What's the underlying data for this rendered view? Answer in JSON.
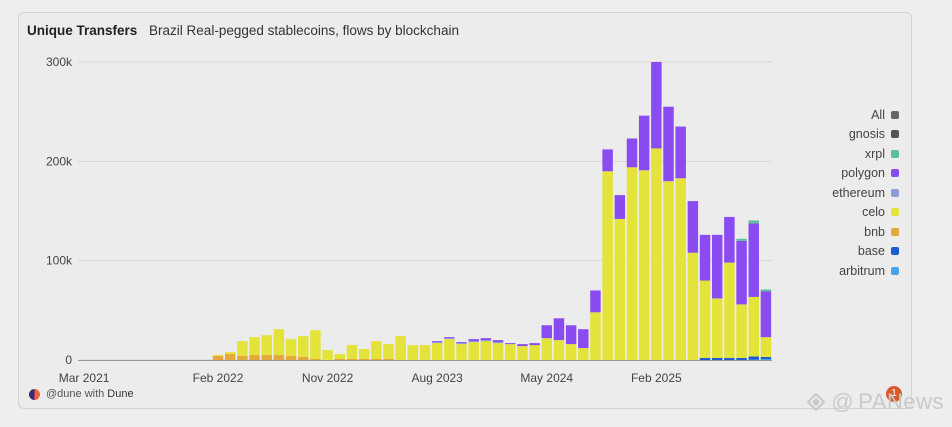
{
  "chart_data": {
    "type": "bar",
    "stacked": true,
    "title": "Unique Transfers",
    "subtitle": "Brazil Real-pegged stablecoins, flows by blockchain",
    "ylim": [
      0,
      300000
    ],
    "y_ticks": [
      "0",
      "100k",
      "200k",
      "300k"
    ],
    "x_ticks": [
      "Mar 2021",
      "Feb 2022",
      "Nov 2022",
      "Aug 2023",
      "May 2024",
      "Feb 2025"
    ],
    "grid": true,
    "legend_position": "right",
    "categories": [
      "2021-03",
      "2021-04",
      "2021-05",
      "2021-06",
      "2021-07",
      "2021-08",
      "2021-09",
      "2021-10",
      "2021-11",
      "2021-12",
      "2022-01",
      "2022-02",
      "2022-03",
      "2022-04",
      "2022-05",
      "2022-06",
      "2022-07",
      "2022-08",
      "2022-09",
      "2022-10",
      "2022-11",
      "2022-12",
      "2023-01",
      "2023-02",
      "2023-03",
      "2023-04",
      "2023-05",
      "2023-06",
      "2023-07",
      "2023-08",
      "2023-09",
      "2023-10",
      "2023-11",
      "2023-12",
      "2024-01",
      "2024-02",
      "2024-03",
      "2024-04",
      "2024-05",
      "2024-06",
      "2024-07",
      "2024-08",
      "2024-09",
      "2024-10",
      "2024-11",
      "2024-12",
      "2025-01",
      "2025-02",
      "2025-03",
      "2025-04",
      "2025-05",
      "2025-06",
      "2025-07",
      "2025-08",
      "2025-09",
      "2025-10",
      "2025-11"
    ],
    "series": [
      {
        "name": "arbitrum",
        "color": "#4aa3e8",
        "values": [
          0,
          0,
          0,
          0,
          0,
          0,
          0,
          0,
          0,
          0,
          0,
          0,
          0,
          0,
          0,
          0,
          0,
          0,
          0,
          0,
          0,
          0,
          0,
          0,
          0,
          0,
          0,
          0,
          0,
          0,
          0,
          0,
          0,
          0,
          0,
          0,
          0,
          0,
          0,
          0,
          0,
          0,
          0,
          0,
          0,
          0,
          0,
          0,
          0,
          0,
          0,
          0,
          0,
          0,
          0,
          500,
          1000
        ]
      },
      {
        "name": "base",
        "color": "#1f5ad1",
        "values": [
          0,
          0,
          0,
          0,
          0,
          0,
          0,
          0,
          0,
          0,
          0,
          0,
          0,
          0,
          0,
          0,
          0,
          0,
          0,
          0,
          0,
          0,
          0,
          0,
          0,
          0,
          0,
          0,
          0,
          0,
          0,
          0,
          0,
          0,
          0,
          0,
          0,
          0,
          0,
          0,
          0,
          0,
          0,
          0,
          0,
          0,
          0,
          0,
          0,
          0,
          0,
          2000,
          2000,
          2000,
          2000,
          3000,
          2000
        ]
      },
      {
        "name": "bnb",
        "color": "#e5a83a",
        "values": [
          0,
          0,
          0,
          0,
          0,
          0,
          0,
          0,
          0,
          0,
          0,
          4000,
          6000,
          4000,
          5000,
          5000,
          5000,
          4000,
          3000,
          1000,
          0,
          1000,
          1000,
          1000,
          1000,
          1000,
          0,
          0,
          0,
          0,
          0,
          0,
          0,
          0,
          0,
          0,
          0,
          0,
          0,
          0,
          0,
          0,
          0,
          0,
          0,
          0,
          0,
          0,
          0,
          0,
          0,
          0,
          0,
          0,
          0,
          0,
          0
        ]
      },
      {
        "name": "celo",
        "color": "#e3e33a",
        "values": [
          0,
          0,
          0,
          0,
          0,
          0,
          0,
          0,
          0,
          0,
          0,
          1000,
          2000,
          15000,
          18000,
          20000,
          26000,
          17000,
          21000,
          29000,
          10000,
          5000,
          14000,
          10000,
          18000,
          15000,
          24000,
          15000,
          15000,
          17000,
          21000,
          16000,
          18000,
          19000,
          17000,
          16000,
          14000,
          15000,
          22000,
          20000,
          16000,
          12000,
          48000,
          190000,
          142000,
          194000,
          191000,
          213000,
          180000,
          183000,
          108000,
          78000,
          60000,
          96000,
          54000,
          60000,
          20000
        ]
      },
      {
        "name": "ethereum",
        "color": "#8e9bd8",
        "values": [
          0,
          0,
          0,
          0,
          0,
          0,
          0,
          0,
          0,
          0,
          0,
          0,
          0,
          0,
          0,
          0,
          0,
          0,
          0,
          0,
          0,
          0,
          0,
          0,
          0,
          0,
          0,
          0,
          0,
          1000,
          1000,
          1000,
          1000,
          1000,
          1000,
          0,
          0,
          0,
          0,
          0,
          0,
          0,
          0,
          0,
          0,
          0,
          0,
          0,
          0,
          0,
          0,
          0,
          0,
          0,
          0,
          0,
          0
        ]
      },
      {
        "name": "polygon",
        "color": "#8a4cf0",
        "values": [
          0,
          0,
          0,
          0,
          0,
          0,
          0,
          0,
          0,
          0,
          0,
          0,
          0,
          0,
          0,
          0,
          0,
          0,
          0,
          0,
          0,
          0,
          0,
          0,
          0,
          0,
          0,
          0,
          0,
          1000,
          1000,
          1000,
          2000,
          2000,
          2000,
          1000,
          2000,
          2000,
          13000,
          22000,
          19000,
          19000,
          22000,
          22000,
          24000,
          29000,
          55000,
          87000,
          75000,
          52000,
          52000,
          46000,
          64000,
          46000,
          64000,
          74000,
          46000
        ]
      },
      {
        "name": "xrpl",
        "color": "#5bbf9a",
        "values": [
          0,
          0,
          0,
          0,
          0,
          0,
          0,
          0,
          0,
          0,
          0,
          0,
          0,
          0,
          0,
          0,
          0,
          0,
          0,
          0,
          0,
          0,
          0,
          0,
          0,
          0,
          0,
          0,
          0,
          0,
          0,
          0,
          0,
          0,
          0,
          0,
          0,
          0,
          0,
          0,
          0,
          0,
          0,
          0,
          0,
          0,
          0,
          0,
          0,
          0,
          0,
          0,
          0,
          0,
          2000,
          3000,
          2000
        ]
      },
      {
        "name": "gnosis",
        "color": "#555555",
        "values": [
          0,
          0,
          0,
          0,
          0,
          0,
          0,
          0,
          0,
          0,
          0,
          0,
          0,
          0,
          0,
          0,
          0,
          0,
          0,
          0,
          0,
          0,
          0,
          0,
          0,
          0,
          0,
          0,
          0,
          0,
          0,
          0,
          0,
          0,
          0,
          0,
          0,
          0,
          0,
          0,
          0,
          0,
          0,
          0,
          0,
          0,
          0,
          0,
          0,
          0,
          0,
          0,
          0,
          0,
          0,
          0,
          0
        ]
      }
    ]
  },
  "legend": [
    {
      "label": "All",
      "color": "#666666"
    },
    {
      "label": "gnosis",
      "color": "#555555"
    },
    {
      "label": "xrpl",
      "color": "#5bbf9a"
    },
    {
      "label": "polygon",
      "color": "#8a4cf0"
    },
    {
      "label": "ethereum",
      "color": "#8e9bd8"
    },
    {
      "label": "celo",
      "color": "#e3e33a"
    },
    {
      "label": "bnb",
      "color": "#e5a83a"
    },
    {
      "label": "base",
      "color": "#1f5ad1"
    },
    {
      "label": "arbitrum",
      "color": "#4aa3e8"
    }
  ],
  "footer": {
    "handle": "@dune with",
    "brand": "Dune"
  },
  "watermark": {
    "at": "@",
    "text": "PANews"
  },
  "notification": {
    "count": "1"
  }
}
